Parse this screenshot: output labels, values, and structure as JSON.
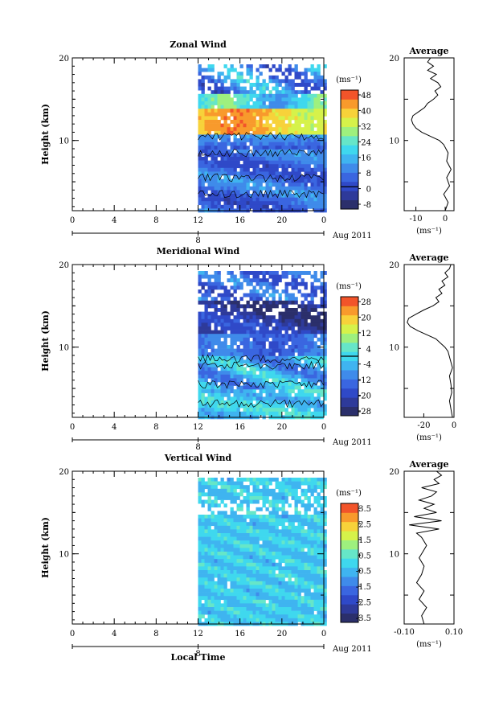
{
  "figure": {
    "xlabel": "Local Time",
    "date_label": "Aug 2011",
    "day_label": "8",
    "x_ticks": [
      "0",
      "4",
      "8",
      "12",
      "16",
      "20",
      "0"
    ],
    "y_ticks": [
      "10",
      "20"
    ],
    "ylabel": "Height (km)",
    "colorbar_unit": "(ms⁻¹)",
    "profile_xunit": "(ms⁻¹)",
    "profile_title": "Average",
    "colors": [
      "#2b2f6b",
      "#2e3a9a",
      "#2f49c8",
      "#3a66e0",
      "#3f8bea",
      "#3fb4f0",
      "#3fd8ee",
      "#66e6c8",
      "#9ef07e",
      "#d6f24a",
      "#f7d23a",
      "#f89a2c",
      "#f2542a"
    ]
  },
  "chart_data": [
    {
      "type": "heatmap",
      "title": "Zonal Wind",
      "ylabel": "Height (km)",
      "xlabel": "",
      "xlim": [
        0,
        24
      ],
      "ylim": [
        1.5,
        20
      ],
      "data_start_hour": 12,
      "colorbar": {
        "unit": "(ms⁻¹)",
        "labels": [
          "48",
          "40",
          "32",
          "24",
          "16",
          "8",
          "0",
          "-8"
        ],
        "min": -12,
        "max": 52,
        "zero_line": 0
      },
      "profile": {
        "title": "Average",
        "xlim": [
          -14,
          3
        ],
        "x_ticks": [
          "-10",
          "0"
        ],
        "xunit": "(ms⁻¹)",
        "points": [
          [
            0,
            1.5
          ],
          [
            1,
            2.5
          ],
          [
            -0.5,
            3.5
          ],
          [
            1.5,
            4.5
          ],
          [
            0.5,
            5.5
          ],
          [
            2,
            6.5
          ],
          [
            0.5,
            7.5
          ],
          [
            1,
            8.5
          ],
          [
            -0.5,
            9.5
          ],
          [
            -2,
            10
          ],
          [
            -5,
            10.5
          ],
          [
            -8,
            11
          ],
          [
            -10,
            11.5
          ],
          [
            -11,
            12
          ],
          [
            -11.5,
            12.5
          ],
          [
            -11,
            13
          ],
          [
            -9,
            13.5
          ],
          [
            -7,
            14
          ],
          [
            -6,
            14.5
          ],
          [
            -4,
            15
          ],
          [
            -2.5,
            15.5
          ],
          [
            -3.5,
            16
          ],
          [
            -1.5,
            16.5
          ],
          [
            -2.5,
            17
          ],
          [
            -5,
            17.5
          ],
          [
            -3,
            18
          ],
          [
            -6,
            18.5
          ],
          [
            -4,
            19
          ],
          [
            -6,
            19.5
          ],
          [
            -5,
            20
          ]
        ]
      }
    },
    {
      "type": "heatmap",
      "title": "Meridional Wind",
      "ylabel": "Height (km)",
      "xlabel": "",
      "xlim": [
        0,
        24
      ],
      "ylim": [
        1.5,
        20
      ],
      "data_start_hour": 12,
      "colorbar": {
        "unit": "(ms⁻¹)",
        "labels": [
          "28",
          "20",
          "12",
          "4",
          "-4",
          "-12",
          "-20",
          "-28"
        ],
        "min": -32,
        "max": 32,
        "zero_line": 0
      },
      "profile": {
        "title": "Average",
        "xlim": [
          -33,
          0
        ],
        "x_ticks": [
          "-20",
          "0"
        ],
        "xunit": "(ms⁻¹)",
        "points": [
          [
            -1,
            1.5
          ],
          [
            -2,
            2.5
          ],
          [
            -3,
            3.5
          ],
          [
            -1.5,
            4.5
          ],
          [
            -2,
            5.5
          ],
          [
            -3,
            6.5
          ],
          [
            -1,
            7.5
          ],
          [
            -2.5,
            8.5
          ],
          [
            -4,
            9.5
          ],
          [
            -6,
            10
          ],
          [
            -9,
            10.5
          ],
          [
            -12,
            11
          ],
          [
            -18,
            11.5
          ],
          [
            -24,
            12
          ],
          [
            -29,
            12.5
          ],
          [
            -31,
            13
          ],
          [
            -30,
            13.5
          ],
          [
            -25,
            14
          ],
          [
            -20,
            14.5
          ],
          [
            -14,
            15
          ],
          [
            -10,
            15.5
          ],
          [
            -12,
            16
          ],
          [
            -8,
            16.5
          ],
          [
            -10,
            17
          ],
          [
            -6,
            17.5
          ],
          [
            -8,
            18
          ],
          [
            -4,
            18.5
          ],
          [
            -6,
            19
          ],
          [
            -3,
            19.5
          ],
          [
            -2,
            20
          ]
        ]
      }
    },
    {
      "type": "heatmap",
      "title": "Vertical Wind",
      "ylabel": "Height (km)",
      "xlabel": "Local Time",
      "xlim": [
        0,
        24
      ],
      "ylim": [
        1.5,
        20
      ],
      "data_start_hour": 12,
      "colorbar": {
        "unit": "(ms⁻¹)",
        "labels": [
          "3.5",
          "2.5",
          "1.5",
          "0.5",
          "-0.5",
          "-1.5",
          "-2.5",
          "-3.5"
        ],
        "min": -4,
        "max": 4,
        "zero_line": null
      },
      "profile": {
        "title": "Average",
        "xlim": [
          -0.1,
          0.1
        ],
        "x_ticks": [
          "-0.10",
          "0.10"
        ],
        "xunit": "(ms⁻¹)",
        "points": [
          [
            -0.02,
            1.5
          ],
          [
            -0.03,
            2.5
          ],
          [
            -0.01,
            3.5
          ],
          [
            -0.04,
            4.5
          ],
          [
            -0.02,
            5.5
          ],
          [
            -0.05,
            6.5
          ],
          [
            -0.03,
            7.5
          ],
          [
            -0.02,
            8.5
          ],
          [
            -0.04,
            9.5
          ],
          [
            -0.03,
            10
          ],
          [
            -0.01,
            11
          ],
          [
            -0.03,
            12
          ],
          [
            -0.05,
            12.5
          ],
          [
            0.04,
            13
          ],
          [
            -0.08,
            13.5
          ],
          [
            0.05,
            14
          ],
          [
            -0.06,
            14.5
          ],
          [
            0.03,
            15
          ],
          [
            -0.02,
            15.5
          ],
          [
            0.02,
            16
          ],
          [
            -0.04,
            16.5
          ],
          [
            0.01,
            17
          ],
          [
            0.03,
            17.5
          ],
          [
            -0.03,
            18
          ],
          [
            0.04,
            18.5
          ],
          [
            0.02,
            19
          ],
          [
            0.05,
            19.5
          ],
          [
            0.03,
            20
          ]
        ]
      }
    }
  ]
}
